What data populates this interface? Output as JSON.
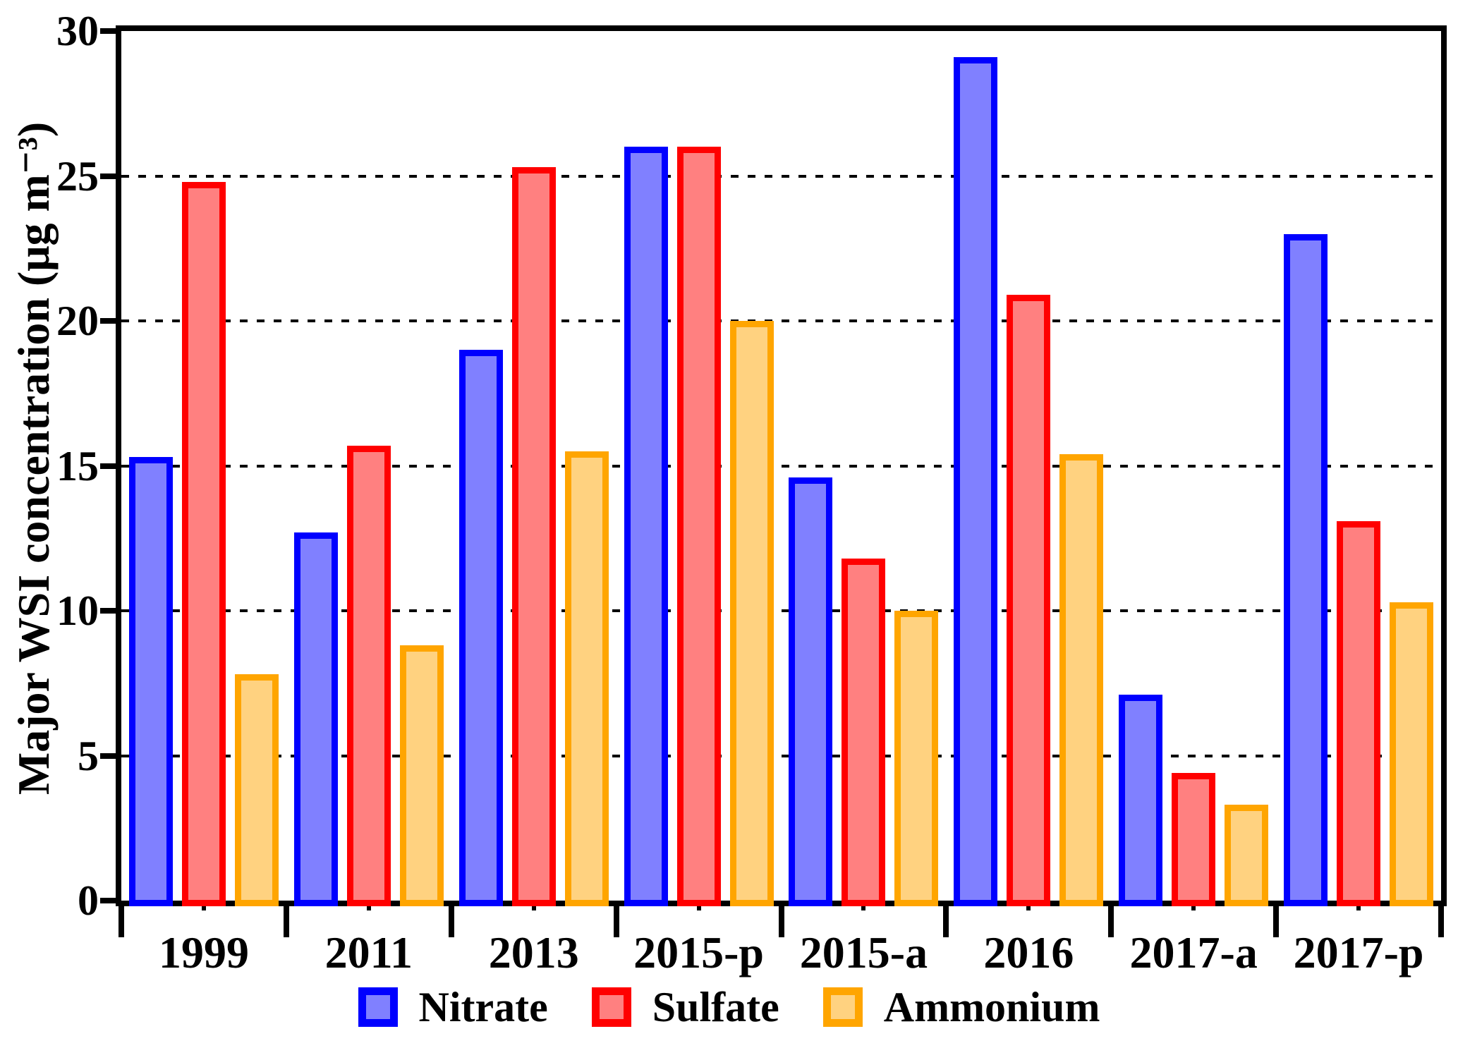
{
  "chart_data": {
    "type": "bar",
    "title": "",
    "ylabel": "Major WSI concentration (μg m⁻³)",
    "xlabel": "",
    "ylim": [
      0,
      30
    ],
    "yticks": [
      0,
      5,
      10,
      15,
      20,
      25,
      30
    ],
    "gridlines": {
      "values": [
        5,
        10,
        15,
        20,
        25
      ],
      "style": "dotted",
      "color": "#000000"
    },
    "categories": [
      "1999",
      "2011",
      "2013",
      "2015-p",
      "2015-a",
      "2016",
      "2017-a",
      "2017-p"
    ],
    "series": [
      {
        "name": "Nitrate",
        "border_color": "#0000FF",
        "fill_color": "#8080FF",
        "values": [
          15.3,
          12.7,
          19.0,
          26.0,
          14.6,
          29.1,
          7.1,
          23.0
        ]
      },
      {
        "name": "Sulfate",
        "border_color": "#FF0000",
        "fill_color": "#FF8080",
        "values": [
          24.8,
          15.7,
          25.3,
          26.0,
          11.8,
          20.9,
          4.4,
          13.1
        ]
      },
      {
        "name": "Ammonium",
        "border_color": "#FFA500",
        "fill_color": "#FFD280",
        "values": [
          7.8,
          8.8,
          15.5,
          20.0,
          10.0,
          15.4,
          3.3,
          10.3
        ]
      }
    ],
    "legend": {
      "position": "bottom",
      "labels": [
        "Nitrate",
        "Sulfate",
        "Ammonium"
      ]
    }
  }
}
